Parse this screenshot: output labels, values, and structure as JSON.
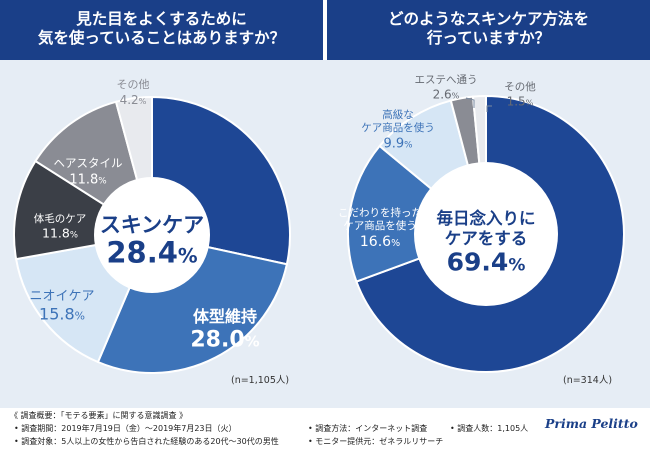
{
  "chart_data": [
    {
      "type": "pie",
      "title_lines": [
        "見た目をよくするために",
        "気を使っていることはありますか？"
      ],
      "sample_note": "(n=1,105人)",
      "slices": [
        {
          "label": "スキンケア",
          "value": 28.4,
          "color": "#1e4795"
        },
        {
          "label": "体型維持",
          "value": 28.0,
          "color": "#3d73b8"
        },
        {
          "label": "ニオイケア",
          "value": 15.8,
          "color": "#d6e6f5"
        },
        {
          "label": "体毛のケア",
          "value": 11.8,
          "color": "#3b3f47"
        },
        {
          "label": "ヘアスタイル",
          "value": 11.8,
          "color": "#8a8c94"
        },
        {
          "label": "その他",
          "value": 4.2,
          "color": "#e8eaee"
        }
      ]
    },
    {
      "type": "pie",
      "title_lines": [
        "どのようなスキンケア方法を",
        "行っていますか？"
      ],
      "sample_note": "(n=314人)",
      "slices": [
        {
          "label": "毎日念入りにケアをする",
          "label_lines": [
            "毎日念入りに",
            "ケアをする"
          ],
          "value": 69.4,
          "color": "#1e4795"
        },
        {
          "label": "こだわりを持ったケア商品を使う",
          "label_lines": [
            "こだわりを持った",
            "ケア商品を使う"
          ],
          "value": 16.6,
          "color": "#3d73b8"
        },
        {
          "label": "高級なケア商品を使う",
          "label_lines": [
            "高級な",
            "ケア商品を使う"
          ],
          "value": 9.9,
          "color": "#d6e6f5"
        },
        {
          "label": "エステへ通う",
          "value": 2.6,
          "color": "#8a8c94"
        },
        {
          "label": "その他",
          "value": 1.5,
          "color": "#e8eaee"
        }
      ]
    }
  ],
  "footer": {
    "survey_title": "《 調査概要：「モテる要素」に関する意識調査 》",
    "period": "• 調査期間：2019年7月19日（金）～2019年7月23日（火）",
    "target": "• 調査対象：5人以上の女性から告白された経験のある20代～30代の男性",
    "method": "• 調査方法：インターネット調査",
    "count": "• 調査人数：1,105人",
    "provider": "• モニター提供元：ゼネラルリサーチ"
  },
  "brand": "Prima Pelitto"
}
